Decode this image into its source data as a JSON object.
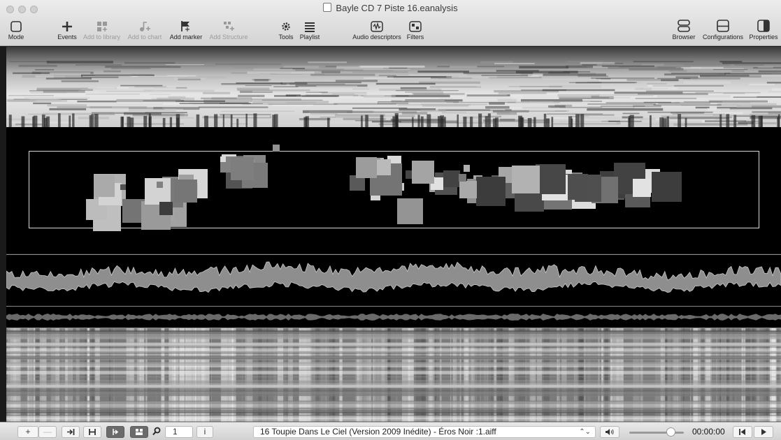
{
  "window": {
    "title": "Bayle CD 7 Piste 16.eanalysis"
  },
  "toolbar": {
    "mode": "Mode",
    "events": "Events",
    "add_to_library": "Add to library",
    "add_to_chart": "Add to chart",
    "add_marker": "Add marker",
    "add_structure": "Add Structure",
    "tools": "Tools",
    "playlist": "Playlist",
    "audio_descriptors": "Audio descriptors",
    "filters": "Filters",
    "browser": "Browser",
    "configurations": "Configurations",
    "properties": "Properties"
  },
  "bottombar": {
    "add": "+",
    "remove": "—",
    "zoom_value": "1",
    "info": "i",
    "file": "16 Toupie Dans Le Ciel (Version 2009 Inédite) - Éros Noir :1.aiff",
    "volume_level": 0.75,
    "time": "00:00:00"
  },
  "icons": {
    "mode": "square-outline-icon",
    "events": "plus-icon",
    "library": "grid-plus-icon",
    "chart": "note-plus-icon",
    "marker": "flag-plus-icon",
    "structure": "structure-plus-icon",
    "tools": "gear-icon",
    "playlist": "list-icon",
    "descriptors": "waveform-icon",
    "filters": "filter-icon",
    "browser": "panel-split-icon",
    "configurations": "panel-split-icon",
    "properties": "sidebar-icon"
  }
}
